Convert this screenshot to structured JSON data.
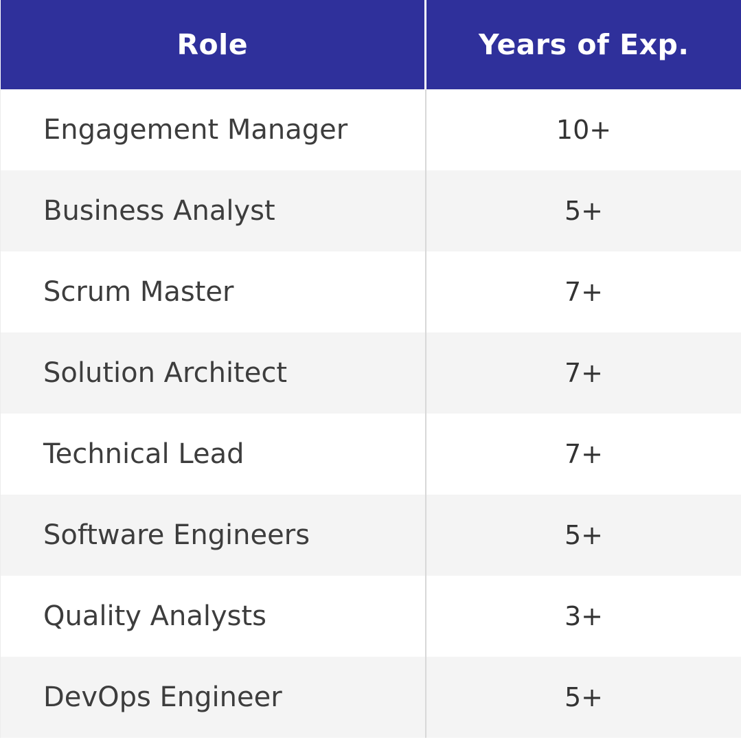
{
  "table": {
    "columns": [
      {
        "label": "Role"
      },
      {
        "label": "Years of Exp."
      }
    ],
    "rows": [
      {
        "role": "Engagement Manager",
        "experience": "10+"
      },
      {
        "role": "Business Analyst",
        "experience": "5+"
      },
      {
        "role": "Scrum Master",
        "experience": "7+"
      },
      {
        "role": "Solution Architect",
        "experience": "7+"
      },
      {
        "role": "Technical Lead",
        "experience": "7+"
      },
      {
        "role": "Software Engineers",
        "experience": "5+"
      },
      {
        "role": "Quality Analysts",
        "experience": "3+"
      },
      {
        "role": "DevOps Engineer",
        "experience": "5+"
      }
    ]
  },
  "colors": {
    "header_bg": "#2F309B",
    "header_text": "#FFFFFF",
    "row_bg": "#FFFFFF",
    "row_alt_bg": "#F4F4F4",
    "body_text": "#3D3D3D",
    "divider_header": "#FFFFFF",
    "divider_body": "#D8D8D8"
  },
  "chart_data": {
    "type": "table",
    "title": "",
    "columns": [
      "Role",
      "Years of Exp."
    ],
    "rows": [
      [
        "Engagement Manager",
        "10+"
      ],
      [
        "Business Analyst",
        "5+"
      ],
      [
        "Scrum Master",
        "7+"
      ],
      [
        "Solution Architect",
        "7+"
      ],
      [
        "Technical Lead",
        "7+"
      ],
      [
        "Software Engineers",
        "5+"
      ],
      [
        "Quality Analysts",
        "3+"
      ],
      [
        "DevOps Engineer",
        "5+"
      ]
    ]
  }
}
